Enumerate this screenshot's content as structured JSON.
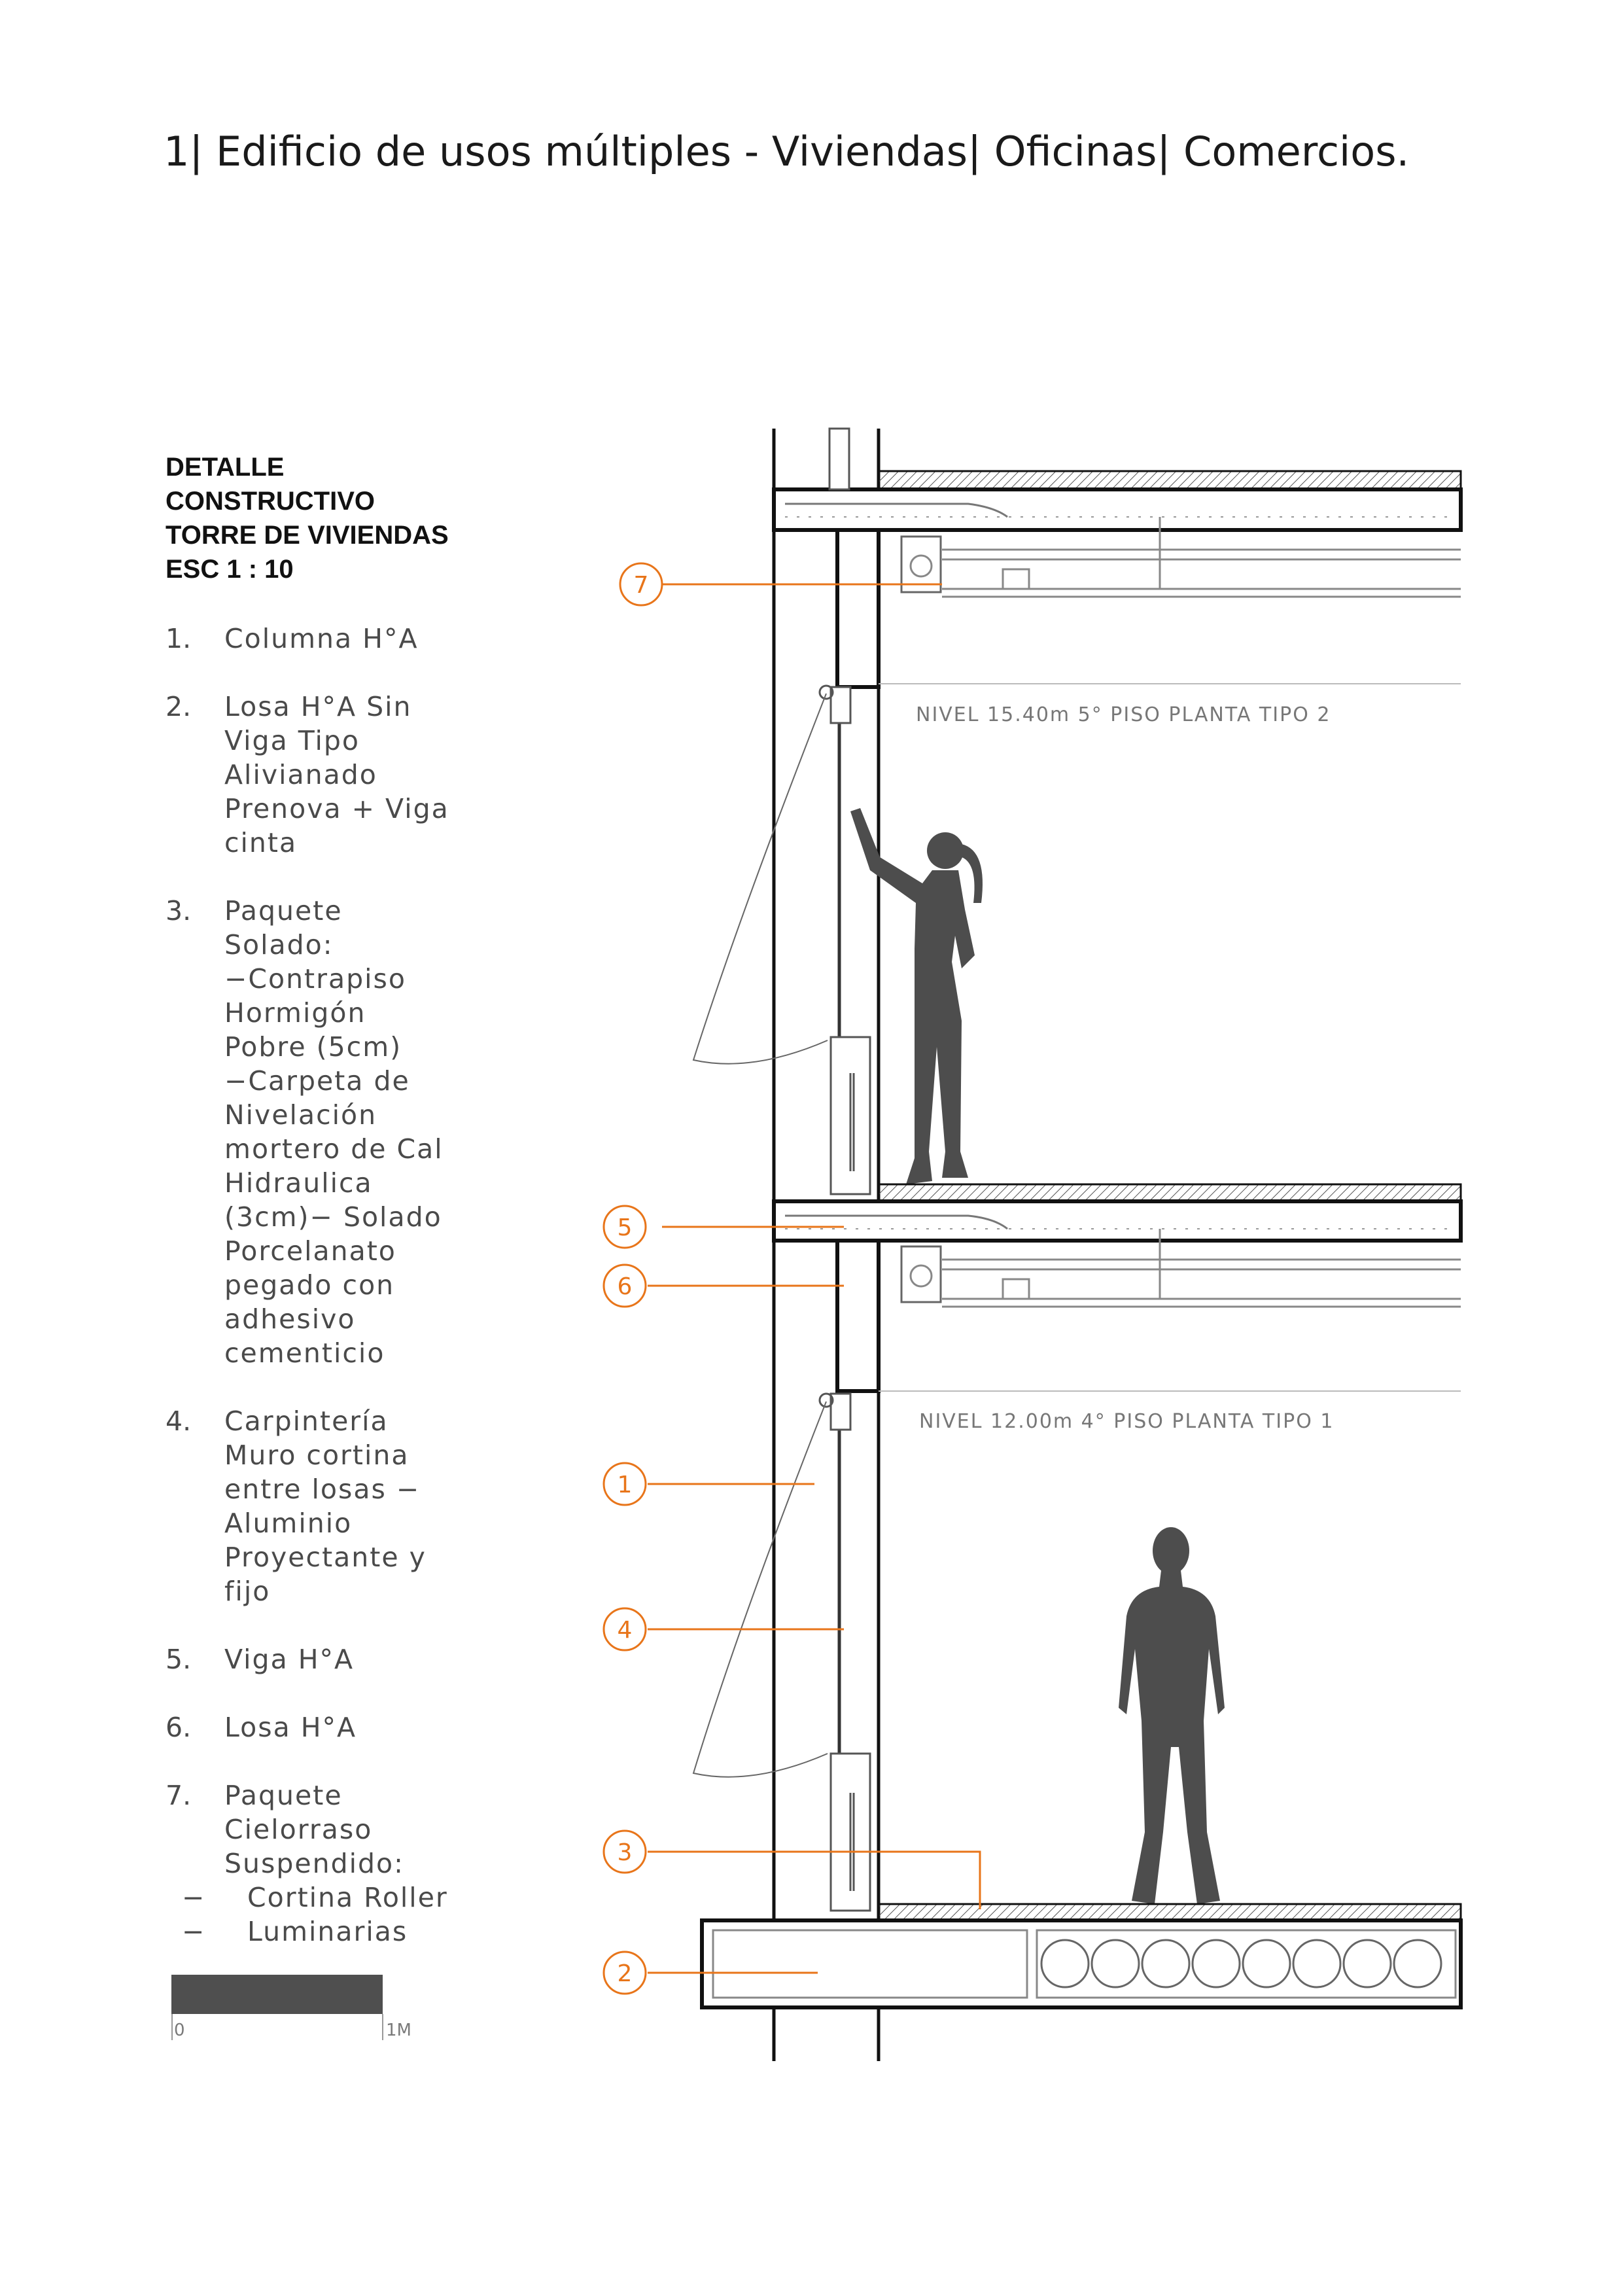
{
  "title": "1| Edificio de usos múltiples - Viviendas| Oficinas| Comercios.",
  "detail": {
    "heading": [
      "DETALLE",
      "CONSTRUCTIVO",
      "TORRE DE VIVIENDAS",
      "ESC 1 : 10"
    ]
  },
  "legend": [
    {
      "num": "1.",
      "text": "Columna H°A"
    },
    {
      "num": "2.",
      "text": "Losa H°A Sin\nViga Tipo\nAlivianado\nPrenova + Viga\ncinta"
    },
    {
      "num": "3.",
      "text": "Paquete\nSolado:\n−Contrapiso\nHormigón\nPobre (5cm)\n−Carpeta de\nNivelación\nmortero de Cal\nHidraulica\n(3cm)− Solado\nPorcelanato\npegado con\nadhesivo\ncementicio"
    },
    {
      "num": "4.",
      "text": "Carpintería\nMuro cortina\nentre losas −\nAluminio\nProyectante y\nfijo"
    },
    {
      "num": "5.",
      "text": "Viga H°A"
    },
    {
      "num": "6.",
      "text": "Losa H°A"
    },
    {
      "num": "7.",
      "text": "Paquete\nCielorraso\nSuspendido:",
      "sub": [
        {
          "dash": "−",
          "text": "Cortina Roller"
        },
        {
          "dash": "−",
          "text": "Luminarias"
        }
      ]
    }
  ],
  "scale": {
    "start": "0",
    "end": "1M"
  },
  "levels": {
    "upper": "NIVEL 15.40m 5° PISO  PLANTA TIPO 2",
    "lower": "NIVEL 12.00m 4° PISO PLANTA TIPO 1"
  },
  "callouts": [
    "7",
    "5",
    "6",
    "1",
    "4",
    "3",
    "2"
  ],
  "colors": {
    "accent": "#e8751a",
    "silhouette": "#4d4d4d",
    "line": "#111111"
  }
}
